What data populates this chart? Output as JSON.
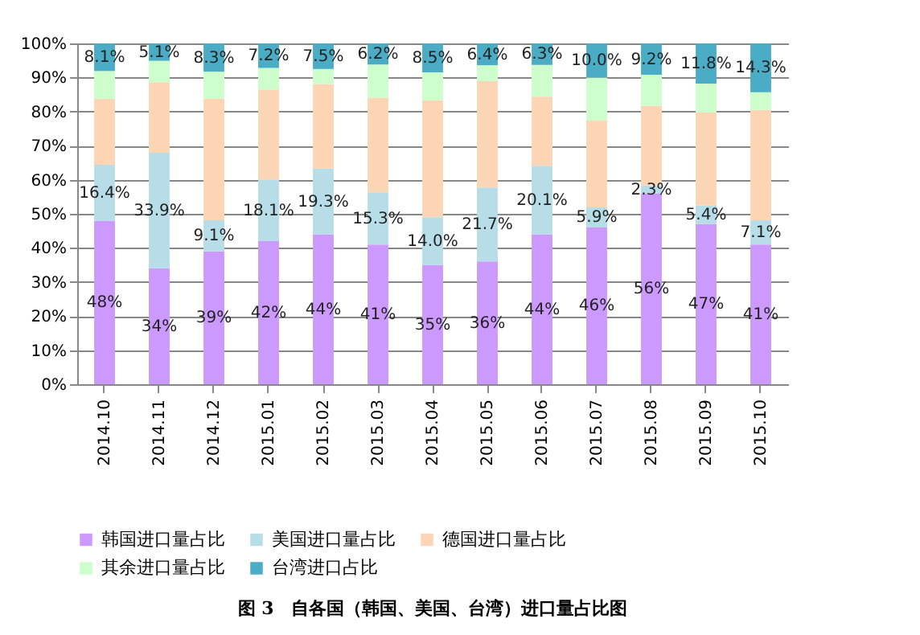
{
  "chart_data": {
    "type": "bar",
    "stacked": true,
    "title": "图 3　自各国（韩国、美国、台湾）进口量占比图",
    "categories": [
      "2014.10",
      "2014.11",
      "2014.12",
      "2015.01",
      "2015.02",
      "2015.03",
      "2015.04",
      "2015.05",
      "2015.06",
      "2015.07",
      "2015.08",
      "2015.09",
      "2015.10"
    ],
    "series": [
      {
        "name": "韩国进口量占比",
        "color": "#cc99ff",
        "values": [
          48,
          34,
          39,
          42,
          44,
          41,
          35,
          36,
          44,
          46,
          56,
          47,
          41
        ],
        "value_labels": [
          "48%",
          "34%",
          "39%",
          "42%",
          "44%",
          "41%",
          "35%",
          "36%",
          "44%",
          "46%",
          "56%",
          "47%",
          "41%"
        ]
      },
      {
        "name": "美国进口量占比",
        "color": "#b7dee8",
        "values": [
          16.4,
          33.9,
          9.1,
          18.1,
          19.3,
          15.3,
          14.0,
          21.7,
          20.1,
          5.9,
          2.3,
          5.4,
          7.1
        ],
        "value_labels": [
          "16.4%",
          "33.9%",
          "9.1%",
          "18.1%",
          "19.3%",
          "15.3%",
          "14.0%",
          "21.7%",
          "20.1%",
          "5.9%",
          "2.3%",
          "5.4%",
          "7.1%"
        ]
      },
      {
        "name": "德国进口量占比",
        "color": "#fcd5b5",
        "values": [
          19.4,
          20.7,
          35.7,
          26.4,
          24.8,
          27.8,
          34.3,
          31.2,
          20.3,
          25.6,
          23.4,
          27.3,
          32.4
        ]
      },
      {
        "name": "其余进口量占比",
        "color": "#ccffcc",
        "values": [
          8.1,
          6.3,
          7.9,
          6.3,
          4.4,
          9.7,
          8.2,
          4.7,
          9.3,
          12.5,
          9.1,
          8.5,
          5.2
        ]
      },
      {
        "name": "台湾进口占比",
        "color": "#4bacc6",
        "values": [
          8.1,
          5.1,
          8.3,
          7.2,
          7.5,
          6.2,
          8.5,
          6.4,
          6.3,
          10.0,
          9.2,
          11.8,
          14.3
        ],
        "value_labels": [
          "8.1%",
          "5.1%",
          "8.3%",
          "7.2%",
          "7.5%",
          "6.2%",
          "8.5%",
          "6.4%",
          "6.3%",
          "10.0%",
          "9.2%",
          "11.8%",
          "14.3%"
        ]
      }
    ],
    "ylim": [
      0,
      100
    ],
    "yticks": [
      {
        "value": 0,
        "label": "0%"
      },
      {
        "value": 10,
        "label": "10%"
      },
      {
        "value": 20,
        "label": "20%"
      },
      {
        "value": 30,
        "label": "30%"
      },
      {
        "value": 40,
        "label": "40%"
      },
      {
        "value": 50,
        "label": "50%"
      },
      {
        "value": 60,
        "label": "60%"
      },
      {
        "value": 70,
        "label": "70%"
      },
      {
        "value": 80,
        "label": "80%"
      },
      {
        "value": 90,
        "label": "90%"
      },
      {
        "value": 100,
        "label": "100%"
      }
    ],
    "grid": "y",
    "legend": "bottom"
  }
}
